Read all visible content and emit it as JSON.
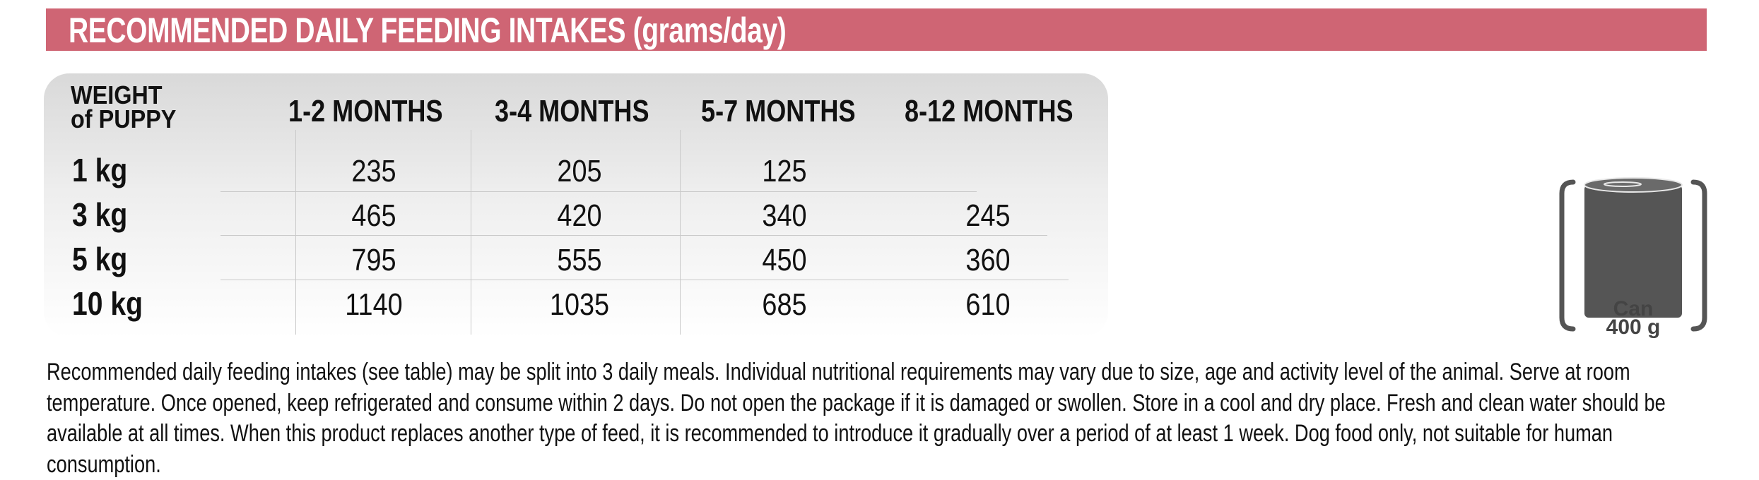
{
  "banner": {
    "title": "RECOMMENDED DAILY FEEDING INTAKES (grams/day)"
  },
  "table": {
    "weight_header_line1": "WEIGHT",
    "weight_header_line2": "of PUPPY",
    "columns": [
      "1-2 MONTHS",
      "3-4 MONTHS",
      "5-7 MONTHS",
      "8-12 MONTHS"
    ],
    "rows": [
      {
        "weight": "1 kg",
        "values": [
          "235",
          "205",
          "125",
          ""
        ]
      },
      {
        "weight": "3 kg",
        "values": [
          "465",
          "420",
          "340",
          "245"
        ]
      },
      {
        "weight": "5 kg",
        "values": [
          "795",
          "555",
          "450",
          "360"
        ]
      },
      {
        "weight": "10 kg",
        "values": [
          "1140",
          "1035",
          "685",
          "610"
        ]
      }
    ]
  },
  "can": {
    "label": "Can",
    "size": "400 g",
    "icon": "can-icon",
    "color": "#555555"
  },
  "note": "Recommended daily feeding intakes (see table) may be split into 3 daily meals. Individual nutritional requirements may vary due to size, age and activity level of the animal. Serve at room temperature. Once opened, keep refrigerated and consume within 2 days. Do not open the package if it is damaged or swollen. Store in a cool and dry place. Fresh and clean water should be available at all times. When this product replaces another type of feed, it is recommended to introduce it gradually over a period of at least 1 week. Dog food only, not suitable for human consumption.",
  "colors": {
    "banner": "#cf6574",
    "text": "#111111"
  }
}
